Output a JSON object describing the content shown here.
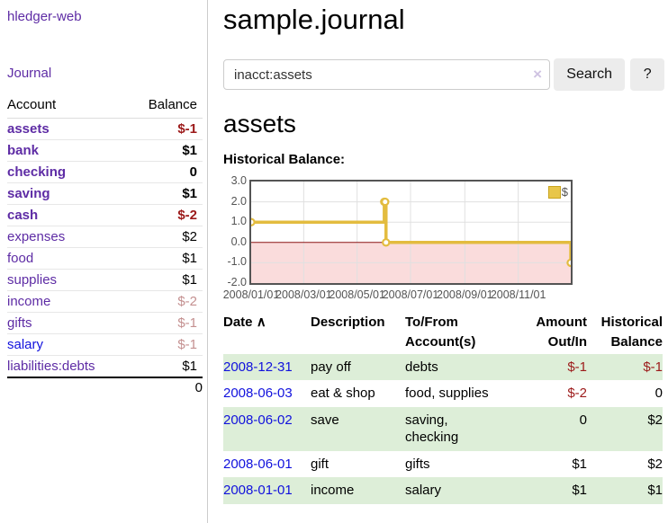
{
  "app": {
    "title": "hledger-web",
    "nav_journal": "Journal"
  },
  "sidebar": {
    "header": {
      "account": "Account",
      "balance": "Balance"
    },
    "accounts": [
      {
        "name": "assets",
        "balance": "$-1",
        "depth": 1,
        "bold": true,
        "neg": "strong"
      },
      {
        "name": "bank",
        "balance": "$1",
        "depth": 2,
        "bold": true,
        "neg": "none"
      },
      {
        "name": "checking",
        "balance": "0",
        "depth": 3,
        "bold": true,
        "neg": "none"
      },
      {
        "name": "saving",
        "balance": "$1",
        "depth": 3,
        "bold": true,
        "neg": "none"
      },
      {
        "name": "cash",
        "balance": "$-2",
        "depth": 2,
        "bold": true,
        "neg": "strong"
      },
      {
        "name": "expenses",
        "balance": "$2",
        "depth": 1,
        "bold": false,
        "neg": "none"
      },
      {
        "name": "food",
        "balance": "$1",
        "depth": 2,
        "bold": false,
        "neg": "none"
      },
      {
        "name": "supplies",
        "balance": "$1",
        "depth": 2,
        "bold": false,
        "neg": "none"
      },
      {
        "name": "income",
        "balance": "$-2",
        "depth": 1,
        "bold": false,
        "neg": "soft"
      },
      {
        "name": "gifts",
        "balance": "$-1",
        "depth": 2,
        "bold": false,
        "neg": "soft"
      },
      {
        "name": "salary",
        "balance": "$-1",
        "depth": 2,
        "bold": false,
        "neg": "soft",
        "link_color": "blue"
      },
      {
        "name": "liabilities:debts",
        "balance": "$1",
        "depth": 1,
        "bold": false,
        "neg": "none"
      }
    ],
    "total": "0"
  },
  "header": {
    "title": "sample.journal"
  },
  "search": {
    "value": "inacct:assets",
    "clear_icon": "×",
    "button_label": "Search",
    "help_label": "?"
  },
  "account_page": {
    "title": "assets",
    "chart_label": "Historical Balance:"
  },
  "chart_data": {
    "type": "line",
    "title": "Historical Balance",
    "step": true,
    "series": [
      {
        "name": "$",
        "color": "#e3bc3f",
        "points": [
          [
            "2008-01-01",
            1
          ],
          [
            "2008-06-01",
            2
          ],
          [
            "2008-06-02",
            2
          ],
          [
            "2008-06-03",
            0
          ],
          [
            "2008-12-31",
            -1
          ]
        ]
      }
    ],
    "xrange": [
      "2008-01-01",
      "2008-12-31"
    ],
    "ylim": [
      -2,
      3
    ],
    "yticks": [
      "3.0",
      "2.0",
      "1.0",
      "0.0",
      "-1.0",
      "-2.0"
    ],
    "xticks": [
      "2008/01/01",
      "2008/03/01",
      "2008/05/01",
      "2008/07/01",
      "2008/09/01",
      "2008/11/01"
    ],
    "grid": true,
    "gridline_color": "#e0e0e0",
    "negative_region_color": "#fadcdc",
    "zero_line_color": "#8b1414",
    "marker_fill": "#ffffff",
    "legend": {
      "label": "$",
      "position": "top-right",
      "swatch_color": "#e8c64a"
    }
  },
  "register": {
    "columns": {
      "date": "Date",
      "sort_icon": "∧",
      "description": "Description",
      "accounts": "To/From\nAccount(s)",
      "amount": "Amount\nOut/In",
      "balance": "Historical\nBalance"
    },
    "rows": [
      {
        "date": "2008-12-31",
        "description": "pay off",
        "accounts": "debts",
        "amount": "$-1",
        "balance": "$-1",
        "amount_neg": true,
        "balance_neg": true,
        "green": true
      },
      {
        "date": "2008-06-03",
        "description": "eat & shop",
        "accounts": "food, supplies",
        "amount": "$-2",
        "balance": "0",
        "amount_neg": true,
        "balance_neg": false,
        "green": false
      },
      {
        "date": "2008-06-02",
        "description": "save",
        "accounts": "saving,\nchecking",
        "amount": "0",
        "balance": "$2",
        "amount_neg": false,
        "balance_neg": false,
        "green": true
      },
      {
        "date": "2008-06-01",
        "description": "gift",
        "accounts": "gifts",
        "amount": "$1",
        "balance": "$2",
        "amount_neg": false,
        "balance_neg": false,
        "green": false
      },
      {
        "date": "2008-01-01",
        "description": "income",
        "accounts": "salary",
        "amount": "$1",
        "balance": "$1",
        "amount_neg": false,
        "balance_neg": false,
        "green": true
      }
    ]
  }
}
